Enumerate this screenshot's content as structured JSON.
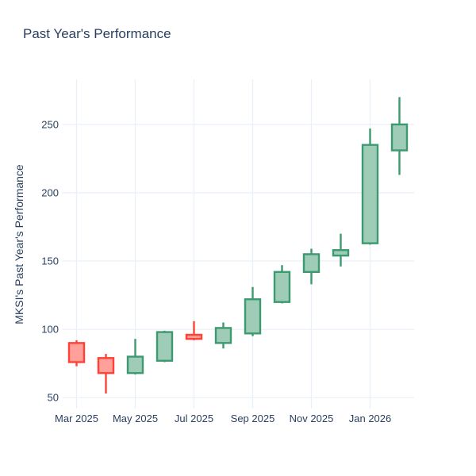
{
  "chart": {
    "title": "Past Year's Performance",
    "ylabel": "MKSI's Past Year's Performance"
  },
  "chart_data": {
    "type": "candlestick",
    "title": "Past Year's Performance",
    "xlabel": "",
    "ylabel": "MKSI's Past Year's Performance",
    "grid": true,
    "legend": false,
    "y_ticks": [
      50,
      100,
      150,
      200,
      250
    ],
    "ylim": [
      42,
      283
    ],
    "x_tick_labels": [
      "Mar 2025",
      "May 2025",
      "Jul 2025",
      "Sep 2025",
      "Nov 2025",
      "Jan 2026"
    ],
    "x_tick_indices": [
      0,
      2,
      4,
      6,
      8,
      10
    ],
    "candles": [
      {
        "x": "Mar 2025",
        "open": 90,
        "high": 92,
        "low": 73,
        "close": 76
      },
      {
        "x": "Apr 2025",
        "open": 79,
        "high": 82,
        "low": 53,
        "close": 68
      },
      {
        "x": "May 2025",
        "open": 68,
        "high": 93,
        "low": 67,
        "close": 80
      },
      {
        "x": "Jun 2025",
        "open": 77,
        "high": 99,
        "low": 76,
        "close": 98
      },
      {
        "x": "Jul 2025",
        "open": 96,
        "high": 106,
        "low": 92,
        "close": 93
      },
      {
        "x": "Aug 2025",
        "open": 90,
        "high": 105,
        "low": 86,
        "close": 101
      },
      {
        "x": "Sep 2025",
        "open": 97,
        "high": 131,
        "low": 95,
        "close": 122
      },
      {
        "x": "Oct 2025",
        "open": 120,
        "high": 147,
        "low": 119,
        "close": 142
      },
      {
        "x": "Nov 2025",
        "open": 142,
        "high": 159,
        "low": 133,
        "close": 155
      },
      {
        "x": "Dec 2025",
        "open": 154,
        "high": 170,
        "low": 146,
        "close": 158
      },
      {
        "x": "Jan 2026",
        "open": 163,
        "high": 247,
        "low": 162,
        "close": 235
      },
      {
        "x": "Feb 2026",
        "open": 231,
        "high": 270,
        "low": 213,
        "close": 250
      }
    ],
    "colors": {
      "increasing_line": "#3D9970",
      "increasing_fill": "#9ECCB7",
      "decreasing_line": "#FF4136",
      "decreasing_fill": "#FFA09A",
      "text": "#2a3f5f",
      "grid": "#EBF0F8",
      "background": "#ffffff"
    }
  }
}
